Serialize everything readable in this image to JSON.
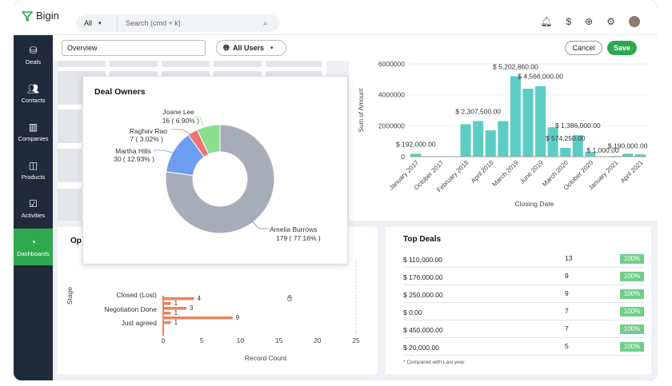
{
  "app": {
    "name": "Bigin"
  },
  "search": {
    "scope": "All",
    "placeholder": "Search (cmd + k)"
  },
  "top_icons": [
    "bell-icon",
    "dollar-refresh-icon",
    "plus-circle-icon",
    "gear-icon",
    "avatar"
  ],
  "sidebar": {
    "items": [
      {
        "label": "Deals",
        "icon": "deals-icon"
      },
      {
        "label": "Contacts",
        "icon": "contacts-icon"
      },
      {
        "label": "Companies",
        "icon": "companies-icon"
      },
      {
        "label": "Products",
        "icon": "products-icon"
      },
      {
        "label": "Activities",
        "icon": "activities-icon"
      },
      {
        "label": "Dashboards",
        "icon": "dashboards-icon",
        "active": true
      }
    ]
  },
  "header": {
    "view_name": "Overview",
    "users_filter": "All Users",
    "cancel_label": "Cancel",
    "save_label": "Save"
  },
  "colors": {
    "accent": "#2fa94f",
    "teal": "#5ccdc4",
    "orange": "#e8845e",
    "donut_gray": "#a6adb8",
    "blue": "#6d9df2",
    "red": "#f07373",
    "green": "#8bde8f"
  },
  "amount_chart": {
    "ylabel": "Sum of Amount",
    "xlabel": "Closing Date",
    "y_ticks": [
      "6000000",
      "4000000",
      "2000000",
      "0"
    ],
    "x_ticks": [
      "January 2017",
      "October 2017",
      "February 2018",
      "April 2018",
      "March 2019",
      "June 2019",
      "March 2020",
      "October 2020",
      "January 2021",
      "April 2021"
    ],
    "bar_labels": [
      "$ 192,000.00",
      "$ 2,307,500.00",
      "$ 5,202,860.00",
      "$ 4,566,000.00",
      "$ 1,386,000.00",
      "$ 574,250.00",
      "$ 1,000.00",
      "$ 190,000.00"
    ]
  },
  "deal_owners": {
    "title": "Deal Owners",
    "labels": {
      "joane": [
        "Joane Lee",
        "16 ( 6.90% )"
      ],
      "raghav": [
        "Raghav Rao",
        "7 ( 3.02% )"
      ],
      "martha": [
        "Martha Hills",
        "30 ( 12.93% )"
      ],
      "amelia": [
        "Amelia Burrows",
        "179 ( 77.16% )"
      ]
    }
  },
  "stage_chart": {
    "title_fragment": "Op",
    "ylabel": "Stage",
    "xlabel": "Record Count",
    "categories": [
      "Closed (Lost)",
      "Negotiation Done",
      "Just agreed"
    ],
    "x_ticks": [
      "0",
      "5",
      "10",
      "15",
      "20",
      "25"
    ],
    "bar_value_labels": [
      "4",
      "1",
      "3",
      "1",
      "9",
      "1"
    ]
  },
  "top_deals": {
    "title": "Top Deals",
    "rows": [
      {
        "amount": "$ 110,000.00",
        "count": "13",
        "pct": "100%"
      },
      {
        "amount": "$ 176,000.00",
        "count": "9",
        "pct": "100%"
      },
      {
        "amount": "$ 250,000.00",
        "count": "9",
        "pct": "100%"
      },
      {
        "amount": "$ 0.00",
        "count": "7",
        "pct": "100%"
      },
      {
        "amount": "$ 450,000.00",
        "count": "7",
        "pct": "100%"
      },
      {
        "amount": "$ 20,000.00",
        "count": "5",
        "pct": "100%"
      }
    ],
    "note": "* Compared with Last year"
  },
  "chart_data": [
    {
      "type": "bar",
      "title": "",
      "xlabel": "Closing Date",
      "ylabel": "Sum of Amount",
      "ylim": [
        0,
        6000000
      ],
      "categories": [
        "January 2017",
        "",
        "October 2017",
        "",
        "February 2018",
        "",
        "April 2018",
        "",
        "March 2019",
        "",
        "June 2019",
        "",
        "March 2020",
        "",
        "October 2020",
        "",
        "January 2021",
        "",
        "April 2021"
      ],
      "values": [
        192000,
        0,
        0,
        0,
        2100000,
        2307500,
        1700000,
        2300000,
        5202860,
        4400000,
        4566000,
        1900000,
        574250,
        1386000,
        300000,
        1000,
        40000,
        190000,
        150000
      ]
    },
    {
      "type": "pie",
      "title": "Deal Owners",
      "categories": [
        "Amelia Burrows",
        "Martha Hills",
        "Raghav Rao",
        "Joane Lee"
      ],
      "values": [
        179,
        30,
        7,
        16
      ],
      "percentages": [
        77.16,
        12.93,
        3.02,
        6.9
      ]
    },
    {
      "type": "bar",
      "orientation": "horizontal",
      "xlabel": "Record Count",
      "ylabel": "Stage",
      "xlim": [
        0,
        25
      ],
      "values": [
        4,
        1,
        3,
        1,
        9,
        1
      ]
    }
  ]
}
